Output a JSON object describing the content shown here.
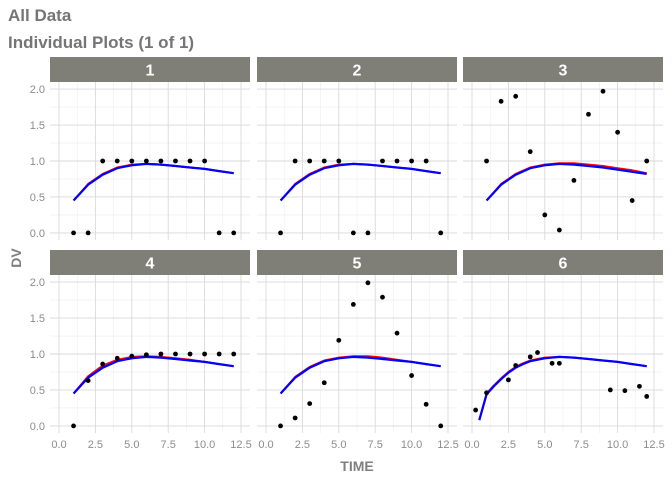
{
  "page": {
    "title": "All Data",
    "subtitle": "Individual Plots (1 of 1)"
  },
  "colors": {
    "strip_bg": "#7f7f78",
    "strip_text": "#ffffff",
    "panel_bg": "#ffffff",
    "grid_major": "#d9d9d9",
    "grid_minor": "#eeeeee",
    "point": "#000000",
    "line_pred": "#ff0000",
    "line_ipred": "#0000ff",
    "axis_text": "#8c8c8c",
    "axis_title": "#7f7f7f"
  },
  "chart_data": {
    "type": "scatter",
    "facet_layout": "3 columns x 2 rows",
    "xlabel": "TIME",
    "ylabel": "DV",
    "xlim": [
      0,
      12.5
    ],
    "ylim": [
      0,
      2.0
    ],
    "x_ticks": [
      "0.0",
      "2.5",
      "5.0",
      "7.5",
      "10.0",
      "12.5"
    ],
    "y_ticks": [
      "0.0",
      "0.5",
      "1.0",
      "1.5",
      "2.0"
    ],
    "grid": true,
    "curve_x": [
      1,
      2,
      3,
      4,
      5,
      6,
      7,
      8,
      9,
      10,
      11,
      12
    ],
    "panels": [
      {
        "label": "1",
        "points": [
          [
            1,
            0
          ],
          [
            2,
            0
          ],
          [
            3,
            1
          ],
          [
            4,
            1
          ],
          [
            5,
            1
          ],
          [
            6,
            1
          ],
          [
            7,
            1
          ],
          [
            8,
            1
          ],
          [
            9,
            1
          ],
          [
            10,
            1
          ],
          [
            11,
            0
          ],
          [
            12,
            0
          ]
        ],
        "pred": [
          0.45,
          0.68,
          0.82,
          0.91,
          0.95,
          0.96,
          0.95,
          0.93,
          0.91,
          0.89,
          0.86,
          0.83
        ],
        "ipred": [
          0.45,
          0.67,
          0.81,
          0.9,
          0.94,
          0.96,
          0.95,
          0.93,
          0.91,
          0.89,
          0.86,
          0.83
        ]
      },
      {
        "label": "2",
        "points": [
          [
            1,
            0
          ],
          [
            2,
            1
          ],
          [
            3,
            1
          ],
          [
            4,
            1
          ],
          [
            5,
            1
          ],
          [
            6,
            0
          ],
          [
            7,
            0
          ],
          [
            8,
            1
          ],
          [
            9,
            1
          ],
          [
            10,
            1
          ],
          [
            11,
            1
          ],
          [
            12,
            0
          ]
        ],
        "pred": [
          0.45,
          0.68,
          0.82,
          0.91,
          0.95,
          0.96,
          0.95,
          0.93,
          0.91,
          0.89,
          0.86,
          0.83
        ],
        "ipred": [
          0.45,
          0.67,
          0.81,
          0.9,
          0.94,
          0.96,
          0.95,
          0.93,
          0.91,
          0.89,
          0.86,
          0.83
        ]
      },
      {
        "label": "3",
        "points": [
          [
            1,
            1
          ],
          [
            2,
            1.83
          ],
          [
            3,
            1.9
          ],
          [
            4,
            1.13
          ],
          [
            5,
            0.25
          ],
          [
            6,
            0.04
          ],
          [
            7,
            0.73
          ],
          [
            8,
            1.65
          ],
          [
            9,
            1.97
          ],
          [
            10,
            1.4
          ],
          [
            11,
            0.45
          ],
          [
            12,
            1
          ]
        ],
        "pred": [
          0.45,
          0.68,
          0.82,
          0.91,
          0.95,
          0.97,
          0.97,
          0.95,
          0.93,
          0.9,
          0.87,
          0.83
        ],
        "ipred": [
          0.45,
          0.67,
          0.81,
          0.9,
          0.94,
          0.96,
          0.95,
          0.93,
          0.91,
          0.88,
          0.85,
          0.82
        ]
      },
      {
        "label": "4",
        "points": [
          [
            1,
            0
          ],
          [
            2,
            0.63
          ],
          [
            3,
            0.86
          ],
          [
            4,
            0.94
          ],
          [
            5,
            0.97
          ],
          [
            6,
            0.99
          ],
          [
            7,
            1
          ],
          [
            8,
            1
          ],
          [
            9,
            1
          ],
          [
            10,
            1
          ],
          [
            11,
            1
          ],
          [
            12,
            1
          ]
        ],
        "pred": [
          0.45,
          0.69,
          0.84,
          0.92,
          0.96,
          0.97,
          0.96,
          0.94,
          0.92,
          0.89,
          0.86,
          0.83
        ],
        "ipred": [
          0.45,
          0.67,
          0.81,
          0.9,
          0.94,
          0.96,
          0.95,
          0.93,
          0.91,
          0.89,
          0.86,
          0.83
        ]
      },
      {
        "label": "5",
        "points": [
          [
            1,
            0
          ],
          [
            2,
            0.11
          ],
          [
            3,
            0.31
          ],
          [
            4,
            0.6
          ],
          [
            5,
            1.19
          ],
          [
            6,
            1.69
          ],
          [
            7,
            1.99
          ],
          [
            8,
            1.79
          ],
          [
            9,
            1.29
          ],
          [
            10,
            0.7
          ],
          [
            11,
            0.3
          ],
          [
            12,
            0
          ]
        ],
        "pred": [
          0.45,
          0.68,
          0.82,
          0.91,
          0.95,
          0.97,
          0.97,
          0.95,
          0.92,
          0.89,
          0.86,
          0.83
        ],
        "ipred": [
          0.45,
          0.67,
          0.81,
          0.9,
          0.94,
          0.96,
          0.95,
          0.93,
          0.91,
          0.89,
          0.86,
          0.83
        ]
      },
      {
        "label": "6",
        "points": [
          [
            0.25,
            0.22
          ],
          [
            1,
            0.46
          ],
          [
            2.5,
            0.64
          ],
          [
            3,
            0.84
          ],
          [
            4,
            0.96
          ],
          [
            4.5,
            1.02
          ],
          [
            5.5,
            0.87
          ],
          [
            6,
            0.87
          ],
          [
            9.5,
            0.5
          ],
          [
            10.5,
            0.49
          ],
          [
            11.5,
            0.55
          ],
          [
            12,
            0.41
          ]
        ],
        "pred": [
          0.45,
          0.68,
          0.82,
          0.91,
          0.95,
          0.96,
          0.95,
          0.93,
          0.91,
          0.89,
          0.86,
          0.83
        ],
        "ipred": [
          0.45,
          0.67,
          0.81,
          0.9,
          0.94,
          0.96,
          0.95,
          0.93,
          0.91,
          0.89,
          0.86,
          0.83
        ],
        "curve_x": [
          0.5,
          1,
          1.5,
          2,
          2.5,
          3,
          3.5,
          4,
          5,
          6,
          7,
          8,
          9,
          10,
          11,
          12
        ],
        "pred_override": [
          0.08,
          0.45,
          0.56,
          0.66,
          0.75,
          0.82,
          0.87,
          0.91,
          0.95,
          0.96,
          0.95,
          0.93,
          0.91,
          0.89,
          0.86,
          0.83
        ],
        "ipred_override": [
          0.08,
          0.44,
          0.55,
          0.65,
          0.74,
          0.81,
          0.86,
          0.9,
          0.94,
          0.96,
          0.95,
          0.93,
          0.91,
          0.89,
          0.86,
          0.83
        ]
      }
    ]
  }
}
